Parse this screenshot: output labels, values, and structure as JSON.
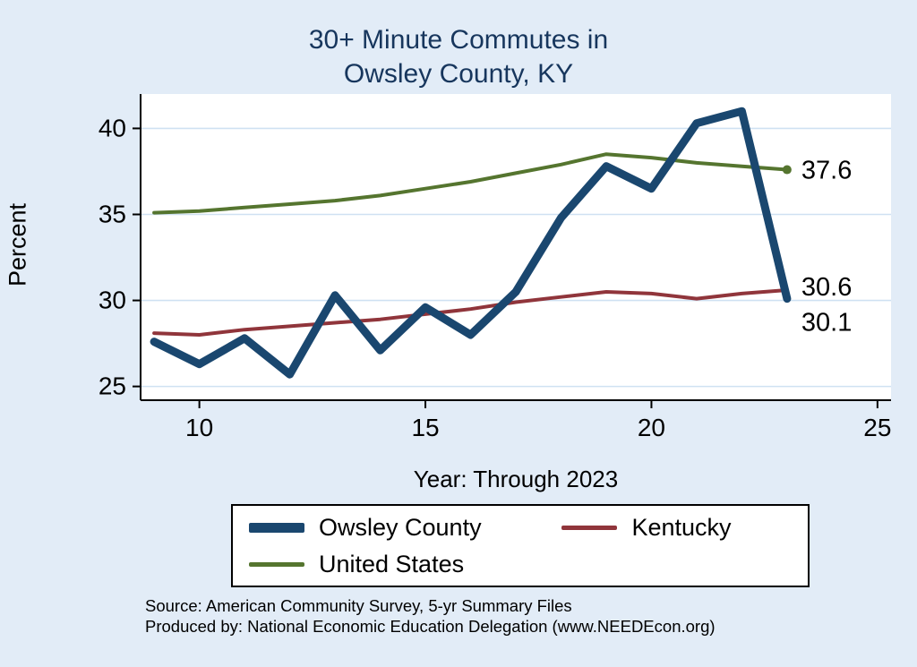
{
  "title": {
    "line1": "30+ Minute Commutes in",
    "line2": "Owsley County, KY"
  },
  "axes": {
    "ylabel": "Percent",
    "xlabel": "Year: Through 2023",
    "x_ticks": [
      10,
      15,
      20,
      25
    ],
    "y_ticks": [
      25,
      30,
      35,
      40
    ],
    "x_range": [
      8.7,
      25.3
    ],
    "y_range": [
      24.2,
      42.0
    ],
    "grid": "horizontal-only"
  },
  "chart_data": {
    "type": "line",
    "x": [
      9,
      10,
      11,
      12,
      13,
      14,
      15,
      16,
      17,
      18,
      19,
      20,
      21,
      22,
      23
    ],
    "series": [
      {
        "name": "United States",
        "color": "#55752f",
        "values": [
          35.1,
          35.2,
          35.4,
          35.6,
          35.8,
          36.1,
          36.5,
          36.9,
          37.4,
          37.9,
          38.5,
          38.3,
          38.0,
          37.8,
          37.6
        ],
        "end_label": "37.6",
        "end_marker": true,
        "line_width": 4
      },
      {
        "name": "Kentucky",
        "color": "#90353b",
        "values": [
          28.1,
          28.0,
          28.3,
          28.5,
          28.7,
          28.9,
          29.2,
          29.5,
          29.9,
          30.2,
          30.5,
          30.4,
          30.1,
          30.4,
          30.6
        ],
        "end_label": "30.6",
        "end_marker": false,
        "line_width": 4
      },
      {
        "name": "Owsley County",
        "color": "#1a476f",
        "values": [
          27.6,
          26.3,
          27.8,
          25.7,
          30.3,
          27.1,
          29.6,
          28.0,
          30.5,
          34.8,
          37.8,
          36.5,
          40.3,
          41.0,
          30.1
        ],
        "end_label": "30.1",
        "end_marker": false,
        "line_width": 9
      }
    ],
    "legend_order": [
      "Owsley County",
      "Kentucky",
      "United States"
    ],
    "legend_position": "bottom",
    "title": "30+ Minute Commutes in Owsley County, KY",
    "xlabel": "Year: Through 2023",
    "ylabel": "Percent"
  },
  "source": {
    "line1": "Source: American Community Survey, 5-yr Summary Files",
    "line2": "Produced by: National Economic Education Delegation (www.NEEDEcon.org)"
  },
  "colors": {
    "background": "#e2ecf7",
    "plot_background": "#ffffff",
    "grid": "#cfe1f2",
    "axis": "#000000",
    "title": "#17365d",
    "text": "#000000"
  }
}
